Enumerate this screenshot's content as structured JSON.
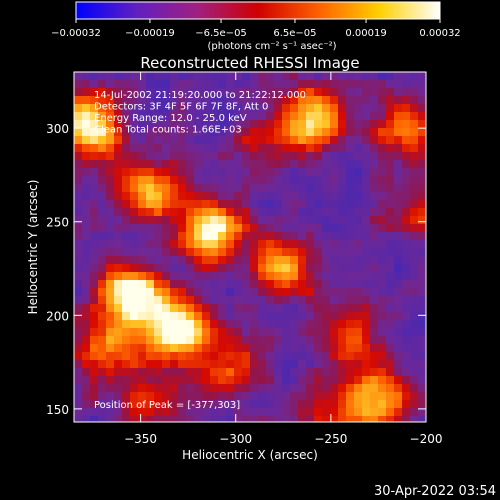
{
  "chart_data": {
    "type": "heatmap",
    "title": "Reconstructed RHESSI Image",
    "xlabel": "Heliocentric X (arcsec)",
    "ylabel": "Heliocentric Y (arcsec)",
    "xlim": [
      -385,
      -200
    ],
    "ylim": [
      143,
      330
    ],
    "x_ticks": [
      -350,
      -300,
      -250,
      -200
    ],
    "x_tick_labels": [
      "−350",
      "−300",
      "−250",
      "−200"
    ],
    "y_ticks": [
      150,
      200,
      250,
      300
    ],
    "y_tick_labels": [
      "150",
      "200",
      "250",
      "300"
    ],
    "colorbar": {
      "range": [
        -0.00032,
        0.00032
      ],
      "ticks": [
        -0.00032,
        -0.00019,
        -6.5e-05,
        6.5e-05,
        0.00019,
        0.00032
      ],
      "tick_labels": [
        "−0.00032",
        "−0.00019",
        "−6.5e−05",
        "6.5e−05",
        "0.00019",
        "0.00032"
      ],
      "units_label": "(photons cm⁻² s⁻¹ asec⁻²)",
      "colormap": "rainbow-like: blue-purple-red-orange-yellow-white",
      "colors": [
        "#0000ff",
        "#6020c0",
        "#a02080",
        "#d00000",
        "#ff6000",
        "#ffd000",
        "#ffffff"
      ]
    },
    "sources": [
      {
        "x": -377,
        "y": 303,
        "amplitude": 1.0
      },
      {
        "x": -313,
        "y": 245,
        "amplitude": 0.95
      },
      {
        "x": -345,
        "y": 265,
        "amplitude": 0.75
      },
      {
        "x": -355,
        "y": 210,
        "amplitude": 0.95
      },
      {
        "x": -330,
        "y": 193,
        "amplitude": 1.0
      },
      {
        "x": -370,
        "y": 180,
        "amplitude": 0.6
      },
      {
        "x": -275,
        "y": 225,
        "amplitude": 0.7
      },
      {
        "x": -260,
        "y": 305,
        "amplitude": 0.75
      },
      {
        "x": -305,
        "y": 170,
        "amplitude": 0.55
      },
      {
        "x": -240,
        "y": 190,
        "amplitude": 0.5
      },
      {
        "x": -225,
        "y": 155,
        "amplitude": 0.75
      },
      {
        "x": -250,
        "y": 150,
        "amplitude": 0.4
      },
      {
        "x": -210,
        "y": 300,
        "amplitude": 0.6
      },
      {
        "x": -205,
        "y": 255,
        "amplitude": 0.35
      },
      {
        "x": -285,
        "y": 290,
        "amplitude": 0.3
      },
      {
        "x": -345,
        "y": 155,
        "amplitude": 0.45
      }
    ],
    "annotations": [
      "14-Jul-2002 21:19:20.000 to 21:22:12.000",
      "Detectors: 3F 4F 5F 6F 7F 8F, Att 0",
      "Energy Range: 12.0 - 25.0 keV",
      "Clean    Total counts: 1.66E+03"
    ],
    "peak_annotation": "Position of Peak = [-377,303]",
    "grid": false,
    "legend": "none"
  },
  "timestamp": "30-Apr-2022 03:54"
}
